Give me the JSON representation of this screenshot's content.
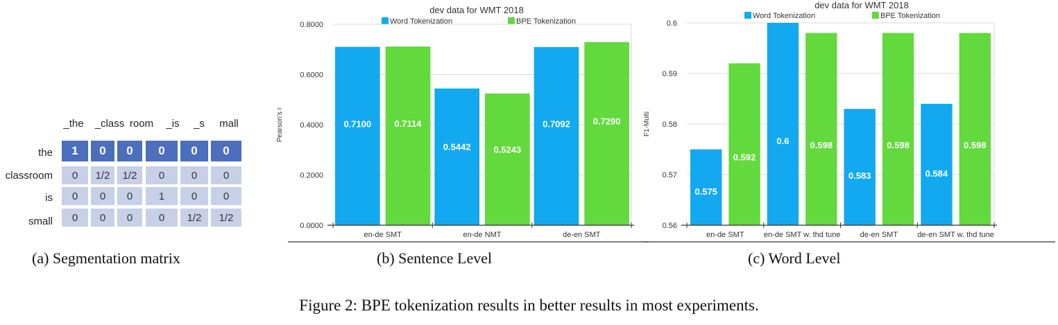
{
  "segmentation": {
    "columns": [
      "_the",
      "_class",
      "room",
      "_is",
      "_s",
      "mall"
    ],
    "rows": [
      {
        "label": "the",
        "values": [
          "1",
          "0",
          "0",
          "0",
          "0",
          "0"
        ]
      },
      {
        "label": "classroom",
        "values": [
          "0",
          "1/2",
          "1/2",
          "0",
          "0",
          "0"
        ]
      },
      {
        "label": "is",
        "values": [
          "0",
          "0",
          "0",
          "1",
          "0",
          "0"
        ]
      },
      {
        "label": "small",
        "values": [
          "0",
          "0",
          "0",
          "0",
          "1/2",
          "1/2"
        ]
      }
    ],
    "caption": "(a)  Segmentation matrix"
  },
  "colors": {
    "word": "#12a9f0",
    "bpe": "#62d93d",
    "matrix_head": "#4b6ebd",
    "matrix_body": "#c8d0e8"
  },
  "chart_data": [
    {
      "type": "bar",
      "title": "dev data for WMT 2018",
      "ylabel": "Pearson's r",
      "ylim": [
        0,
        0.8
      ],
      "yticks": [
        "0.0000",
        "0.2000",
        "0.4000",
        "0.6000",
        "0.8000"
      ],
      "tick_values": [
        0,
        0.2,
        0.4,
        0.6,
        0.8
      ],
      "categories": [
        "en-de SMT",
        "en-de NMT",
        "de-en SMT"
      ],
      "legend_position": "top",
      "grid": true,
      "series": [
        {
          "name": "Word Tokenization",
          "values": [
            0.71,
            0.5442,
            0.7092
          ],
          "labels": [
            "0.7100",
            "0.5442",
            "0.7092"
          ]
        },
        {
          "name": "BPE Tokenization",
          "values": [
            0.7114,
            0.5243,
            0.729
          ],
          "labels": [
            "0.7114",
            "0.5243",
            "0.7290"
          ]
        }
      ],
      "caption": "(b)  Sentence Level"
    },
    {
      "type": "bar",
      "title": "dev data for WMT 2018",
      "ylabel": "F1-Multi",
      "ylim": [
        0.56,
        0.6
      ],
      "yticks": [
        "0.56",
        "0.57",
        "0.58",
        "0.59",
        "0.6"
      ],
      "tick_values": [
        0.56,
        0.57,
        0.58,
        0.59,
        0.6
      ],
      "categories": [
        "en-de SMT",
        "en-de SMT w. thd tune",
        "de-en SMT",
        "de-en SMT w. thd tune"
      ],
      "legend_position": "top",
      "grid": true,
      "series": [
        {
          "name": "Word Tokenization",
          "values": [
            0.575,
            0.6,
            0.583,
            0.584
          ],
          "labels": [
            "0.575",
            "0.6",
            "0.583",
            "0.584"
          ]
        },
        {
          "name": "BPE Tokenization",
          "values": [
            0.592,
            0.598,
            0.598,
            0.598
          ],
          "labels": [
            "0.592",
            "0.598",
            "0.598",
            "0.598"
          ]
        }
      ],
      "caption": "(c)  Word Level"
    }
  ],
  "figure_caption": "Figure 2: BPE tokenization results in better results in most experiments."
}
